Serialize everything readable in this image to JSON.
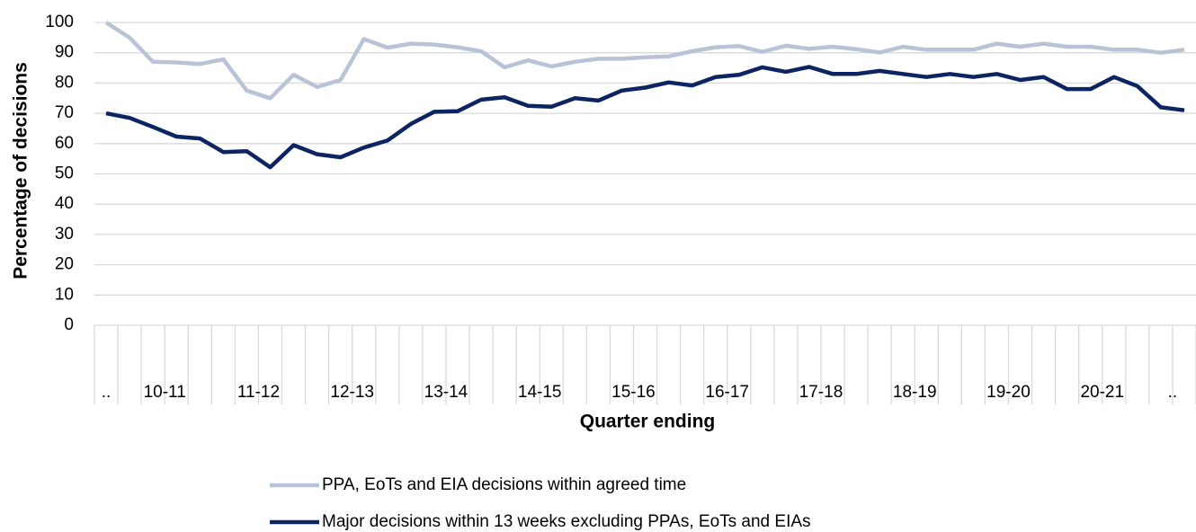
{
  "chart_data": {
    "type": "line",
    "y_label": "Percentage of decisions",
    "x_label": "Quarter ending",
    "categories": [
      "..",
      "10-11",
      "10-11",
      "10-11",
      "10-11",
      "11-12",
      "11-12",
      "11-12",
      "11-12",
      "12-13",
      "12-13",
      "12-13",
      "12-13",
      "13-14",
      "13-14",
      "13-14",
      "13-14",
      "14-15",
      "14-15",
      "14-15",
      "14-15",
      "15-16",
      "15-16",
      "15-16",
      "15-16",
      "16-17",
      "16-17",
      "16-17",
      "16-17",
      "17-18",
      "17-18",
      "17-18",
      "17-18",
      "18-19",
      "18-19",
      "18-19",
      "18-19",
      "19-20",
      "19-20",
      "19-20",
      "19-20",
      "20-21",
      "20-21",
      "20-21",
      "20-21",
      "..",
      ".."
    ],
    "series": [
      {
        "name": "PPA, EoTs and EIA decisions within agreed time",
        "color": "#b9c3d7",
        "values": [
          100,
          95,
          87,
          86.8,
          86.3,
          87.8,
          77.5,
          75,
          82.7,
          78.7,
          81,
          94.5,
          91.7,
          93,
          92.7,
          91.8,
          90.5,
          85.2,
          87.5,
          85.5,
          87,
          88,
          88,
          88.5,
          88.8,
          90.5,
          91.8,
          92.2,
          90.3,
          92.3,
          91.3,
          92,
          91.2,
          90.1,
          92,
          91,
          91,
          91,
          93,
          92,
          93,
          92,
          92,
          91,
          91,
          90,
          91
        ]
      },
      {
        "name": "Major decisions within 13 weeks excluding PPAs, EoTs and EIAs",
        "color": "#0c2461",
        "values": [
          70,
          68.5,
          65.5,
          62.3,
          61.7,
          57.2,
          57.5,
          52.2,
          59.5,
          56.5,
          55.5,
          58.7,
          61,
          66.5,
          70.5,
          70.7,
          74.5,
          75.3,
          72.5,
          72.2,
          75,
          74.2,
          77.5,
          78.5,
          80.2,
          79.2,
          82,
          82.7,
          85.2,
          83.7,
          85.3,
          83,
          83,
          84,
          83,
          82,
          83,
          82,
          83,
          81,
          82,
          78,
          78,
          82,
          79,
          72,
          71
        ]
      }
    ],
    "ylim": [
      0,
      100
    ],
    "yticks": [
      0,
      10,
      20,
      30,
      40,
      50,
      60,
      70,
      80,
      90,
      100
    ],
    "grid": true,
    "legend": "bottom"
  }
}
